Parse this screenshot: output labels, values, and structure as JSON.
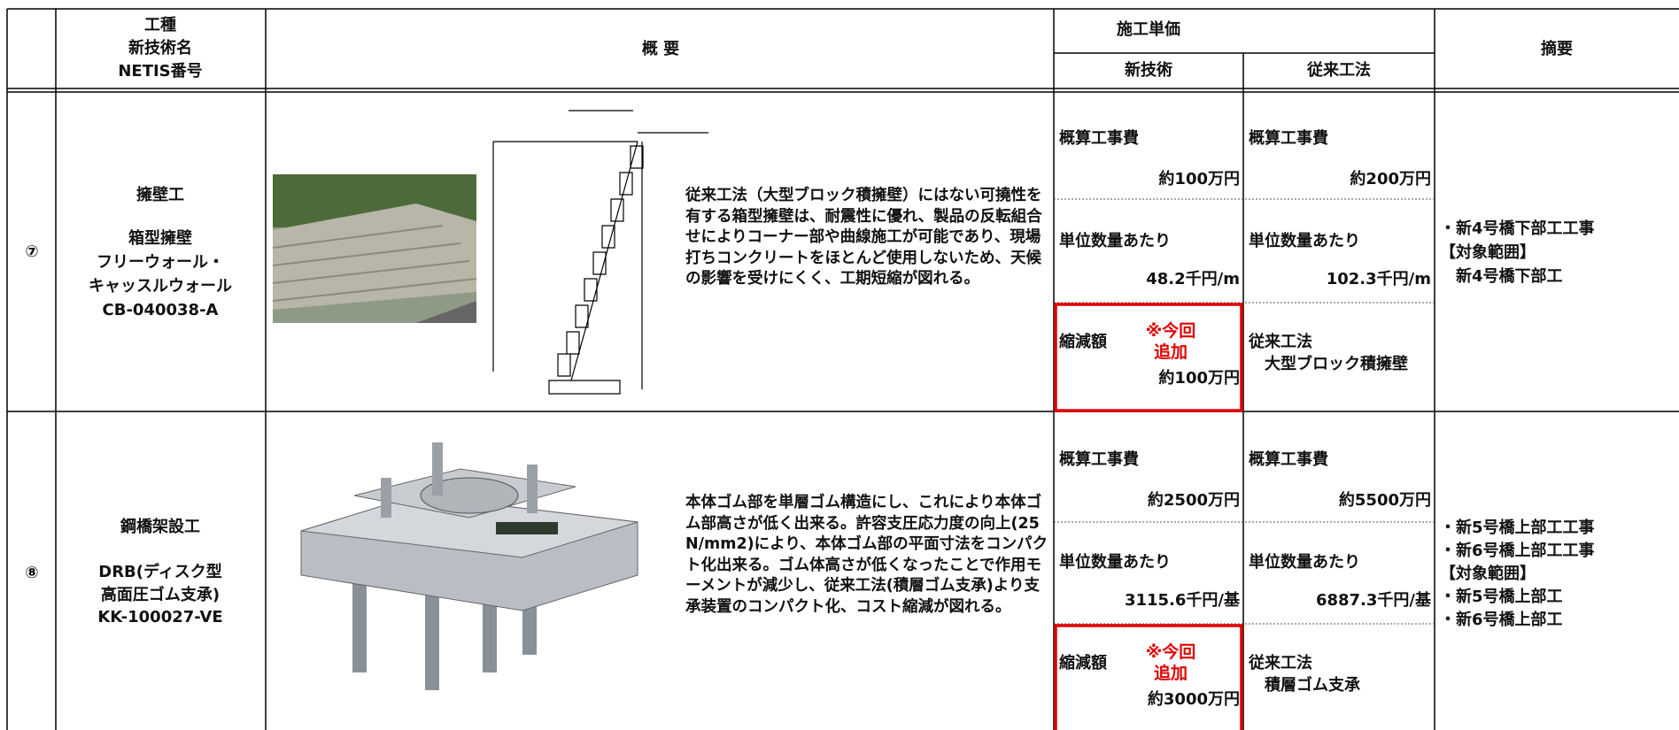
{
  "header": {
    "col1": [
      "工種",
      "新技術名",
      "NETIS番号"
    ],
    "overview": "概 要",
    "unit_price": "施工単価",
    "new_tech": "新技術",
    "conventional": "従来工法",
    "remarks": "摘要"
  },
  "rows": [
    {
      "no": "⑦",
      "category": "擁壁工",
      "tech_name": [
        "箱型擁壁",
        "フリーウォール・",
        "キャッスルウォール"
      ],
      "netis": "CB-040038-A",
      "description": "従来工法（大型ブロック積擁壁）にはない可撓性を有する箱型擁壁は、耐震性に優れ、製品の反転組合せによりコーナー部や曲線施工が可能であり、現場打ちコンクリートをほとんど使用しないため、天候の影響を受けにくく、工期短縮が図れる。",
      "new": {
        "cost_label": "概算工事費",
        "cost": "約100万円",
        "unit_label": "単位数量あたり",
        "unit": "48.2千円/m",
        "saving_label": "縮減額",
        "note": [
          "※今回",
          "追加"
        ],
        "saving": "約100万円"
      },
      "conv": {
        "cost_label": "概算工事費",
        "cost": "約200万円",
        "unit_label": "単位数量あたり",
        "unit": "102.3千円/m",
        "method_label": "従来工法",
        "method": "大型ブロック積擁壁"
      },
      "remarks": [
        "・新4号橋下部工工事",
        "【対象範囲】",
        "　新4号橋下部工"
      ]
    },
    {
      "no": "⑧",
      "category": "鋼橋架設工",
      "tech_name": [
        "DRB(ディスク型",
        "高面圧ゴム支承)"
      ],
      "netis": "KK-100027-VE",
      "description": "本体ゴム部を単層ゴム構造にし、これにより本体ゴム部高さが低く出来る。許容支圧応力度の向上(25N/mm2)により、本体ゴム部の平面寸法をコンパクト化出来る。ゴム体高さが低くなったことで作用モーメントが減少し、従来工法(積層ゴム支承)より支承装置のコンパクト化、コスト縮減が図れる。",
      "new": {
        "cost_label": "概算工事費",
        "cost": "約2500万円",
        "unit_label": "単位数量あたり",
        "unit": "3115.6千円/基",
        "saving_label": "縮減額",
        "note": [
          "※今回",
          "追加"
        ],
        "saving": "約3000万円"
      },
      "conv": {
        "cost_label": "概算工事費",
        "cost": "約5500万円",
        "unit_label": "単位数量あたり",
        "unit": "6887.3千円/基",
        "method_label": "従来工法",
        "method": "積層ゴム支承"
      },
      "remarks": [
        "・新5号橋上部工工事",
        "・新6号橋上部工工事",
        "【対象範囲】",
        "・新5号橋上部工",
        "・新6号橋上部工"
      ]
    }
  ]
}
